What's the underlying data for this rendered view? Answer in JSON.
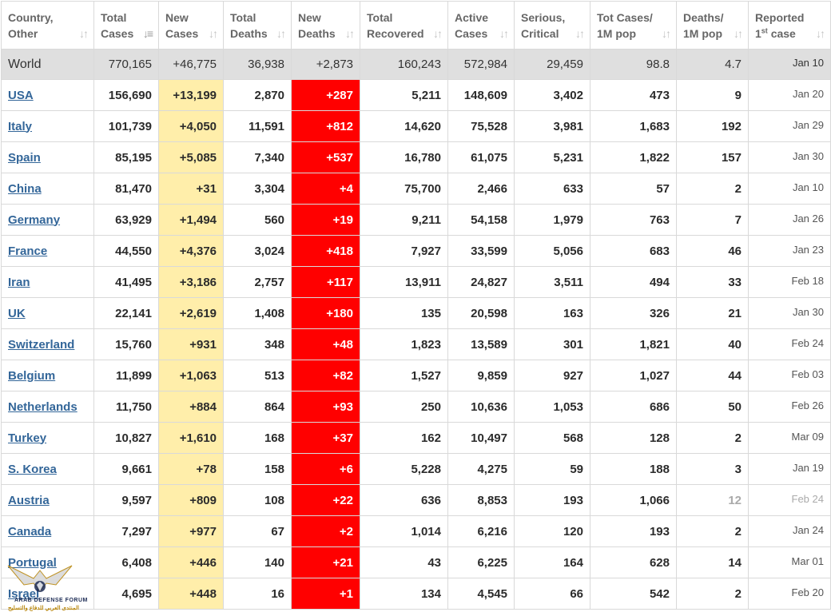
{
  "columns": [
    {
      "line1": "Country,",
      "line2": "Other",
      "sorted": false
    },
    {
      "line1": "Total",
      "line2": "Cases",
      "sorted": true
    },
    {
      "line1": "New",
      "line2": "Cases",
      "sorted": false
    },
    {
      "line1": "Total",
      "line2": "Deaths",
      "sorted": false
    },
    {
      "line1": "New",
      "line2": "Deaths",
      "sorted": false
    },
    {
      "line1": "Total",
      "line2": "Recovered",
      "sorted": false
    },
    {
      "line1": "Active",
      "line2": "Cases",
      "sorted": false
    },
    {
      "line1": "Serious,",
      "line2": "Critical",
      "sorted": false
    },
    {
      "line1": "Tot Cases/",
      "line2": "1M pop",
      "sorted": false
    },
    {
      "line1": "Deaths/",
      "line2": "1M pop",
      "sorted": false
    },
    {
      "line1": "Reported",
      "line2_sup": "st",
      "line2_pre": "1",
      "line2_post": " case",
      "sorted": false
    }
  ],
  "world": {
    "country": "World",
    "total_cases": "770,165",
    "new_cases": "+46,775",
    "total_deaths": "36,938",
    "new_deaths": "+2,873",
    "total_recovered": "160,243",
    "active_cases": "572,984",
    "serious": "29,459",
    "cases_per_m": "98.8",
    "deaths_per_m": "4.7",
    "first_case": "Jan 10"
  },
  "rows": [
    {
      "country": "USA",
      "total_cases": "156,690",
      "new_cases": "+13,199",
      "total_deaths": "2,870",
      "new_deaths": "+287",
      "total_recovered": "5,211",
      "active_cases": "148,609",
      "serious": "3,402",
      "cases_per_m": "473",
      "deaths_per_m": "9",
      "first_case": "Jan 20"
    },
    {
      "country": "Italy",
      "total_cases": "101,739",
      "new_cases": "+4,050",
      "total_deaths": "11,591",
      "new_deaths": "+812",
      "total_recovered": "14,620",
      "active_cases": "75,528",
      "serious": "3,981",
      "cases_per_m": "1,683",
      "deaths_per_m": "192",
      "first_case": "Jan 29"
    },
    {
      "country": "Spain",
      "total_cases": "85,195",
      "new_cases": "+5,085",
      "total_deaths": "7,340",
      "new_deaths": "+537",
      "total_recovered": "16,780",
      "active_cases": "61,075",
      "serious": "5,231",
      "cases_per_m": "1,822",
      "deaths_per_m": "157",
      "first_case": "Jan 30"
    },
    {
      "country": "China",
      "total_cases": "81,470",
      "new_cases": "+31",
      "total_deaths": "3,304",
      "new_deaths": "+4",
      "total_recovered": "75,700",
      "active_cases": "2,466",
      "serious": "633",
      "cases_per_m": "57",
      "deaths_per_m": "2",
      "first_case": "Jan 10"
    },
    {
      "country": "Germany",
      "total_cases": "63,929",
      "new_cases": "+1,494",
      "total_deaths": "560",
      "new_deaths": "+19",
      "total_recovered": "9,211",
      "active_cases": "54,158",
      "serious": "1,979",
      "cases_per_m": "763",
      "deaths_per_m": "7",
      "first_case": "Jan 26"
    },
    {
      "country": "France",
      "total_cases": "44,550",
      "new_cases": "+4,376",
      "total_deaths": "3,024",
      "new_deaths": "+418",
      "total_recovered": "7,927",
      "active_cases": "33,599",
      "serious": "5,056",
      "cases_per_m": "683",
      "deaths_per_m": "46",
      "first_case": "Jan 23"
    },
    {
      "country": "Iran",
      "total_cases": "41,495",
      "new_cases": "+3,186",
      "total_deaths": "2,757",
      "new_deaths": "+117",
      "total_recovered": "13,911",
      "active_cases": "24,827",
      "serious": "3,511",
      "cases_per_m": "494",
      "deaths_per_m": "33",
      "first_case": "Feb 18"
    },
    {
      "country": "UK",
      "total_cases": "22,141",
      "new_cases": "+2,619",
      "total_deaths": "1,408",
      "new_deaths": "+180",
      "total_recovered": "135",
      "active_cases": "20,598",
      "serious": "163",
      "cases_per_m": "326",
      "deaths_per_m": "21",
      "first_case": "Jan 30"
    },
    {
      "country": "Switzerland",
      "total_cases": "15,760",
      "new_cases": "+931",
      "total_deaths": "348",
      "new_deaths": "+48",
      "total_recovered": "1,823",
      "active_cases": "13,589",
      "serious": "301",
      "cases_per_m": "1,821",
      "deaths_per_m": "40",
      "first_case": "Feb 24"
    },
    {
      "country": "Belgium",
      "total_cases": "11,899",
      "new_cases": "+1,063",
      "total_deaths": "513",
      "new_deaths": "+82",
      "total_recovered": "1,527",
      "active_cases": "9,859",
      "serious": "927",
      "cases_per_m": "1,027",
      "deaths_per_m": "44",
      "first_case": "Feb 03"
    },
    {
      "country": "Netherlands",
      "total_cases": "11,750",
      "new_cases": "+884",
      "total_deaths": "864",
      "new_deaths": "+93",
      "total_recovered": "250",
      "active_cases": "10,636",
      "serious": "1,053",
      "cases_per_m": "686",
      "deaths_per_m": "50",
      "first_case": "Feb 26"
    },
    {
      "country": "Turkey",
      "total_cases": "10,827",
      "new_cases": "+1,610",
      "total_deaths": "168",
      "new_deaths": "+37",
      "total_recovered": "162",
      "active_cases": "10,497",
      "serious": "568",
      "cases_per_m": "128",
      "deaths_per_m": "2",
      "first_case": "Mar 09"
    },
    {
      "country": "S. Korea",
      "total_cases": "9,661",
      "new_cases": "+78",
      "total_deaths": "158",
      "new_deaths": "+6",
      "total_recovered": "5,228",
      "active_cases": "4,275",
      "serious": "59",
      "cases_per_m": "188",
      "deaths_per_m": "3",
      "first_case": "Jan 19"
    },
    {
      "country": "Austria",
      "total_cases": "9,597",
      "new_cases": "+809",
      "total_deaths": "108",
      "new_deaths": "+22",
      "total_recovered": "636",
      "active_cases": "8,853",
      "serious": "193",
      "cases_per_m": "1,066",
      "deaths_per_m": "12",
      "first_case": "Feb 24",
      "faded": true
    },
    {
      "country": "Canada",
      "total_cases": "7,297",
      "new_cases": "+977",
      "total_deaths": "67",
      "new_deaths": "+2",
      "total_recovered": "1,014",
      "active_cases": "6,216",
      "serious": "120",
      "cases_per_m": "193",
      "deaths_per_m": "2",
      "first_case": "Jan 24"
    },
    {
      "country": "Portugal",
      "total_cases": "6,408",
      "new_cases": "+446",
      "total_deaths": "140",
      "new_deaths": "+21",
      "total_recovered": "43",
      "active_cases": "6,225",
      "serious": "164",
      "cases_per_m": "628",
      "deaths_per_m": "14",
      "first_case": "Mar 01"
    },
    {
      "country": "Israel",
      "total_cases": "4,695",
      "new_cases": "+448",
      "total_deaths": "16",
      "new_deaths": "+1",
      "total_recovered": "134",
      "active_cases": "4,545",
      "serious": "66",
      "cases_per_m": "542",
      "deaths_per_m": "2",
      "first_case": "Feb 20"
    }
  ],
  "watermark": {
    "line1": "ARAB DEFENSE FORUM",
    "line2": "المنتدى العربي للدفاع والتسليح"
  },
  "colors": {
    "new_cases_bg": "#ffeeaa",
    "new_deaths_bg": "#ff0000",
    "world_row_bg": "#dfdfdf",
    "link": "#336699"
  }
}
